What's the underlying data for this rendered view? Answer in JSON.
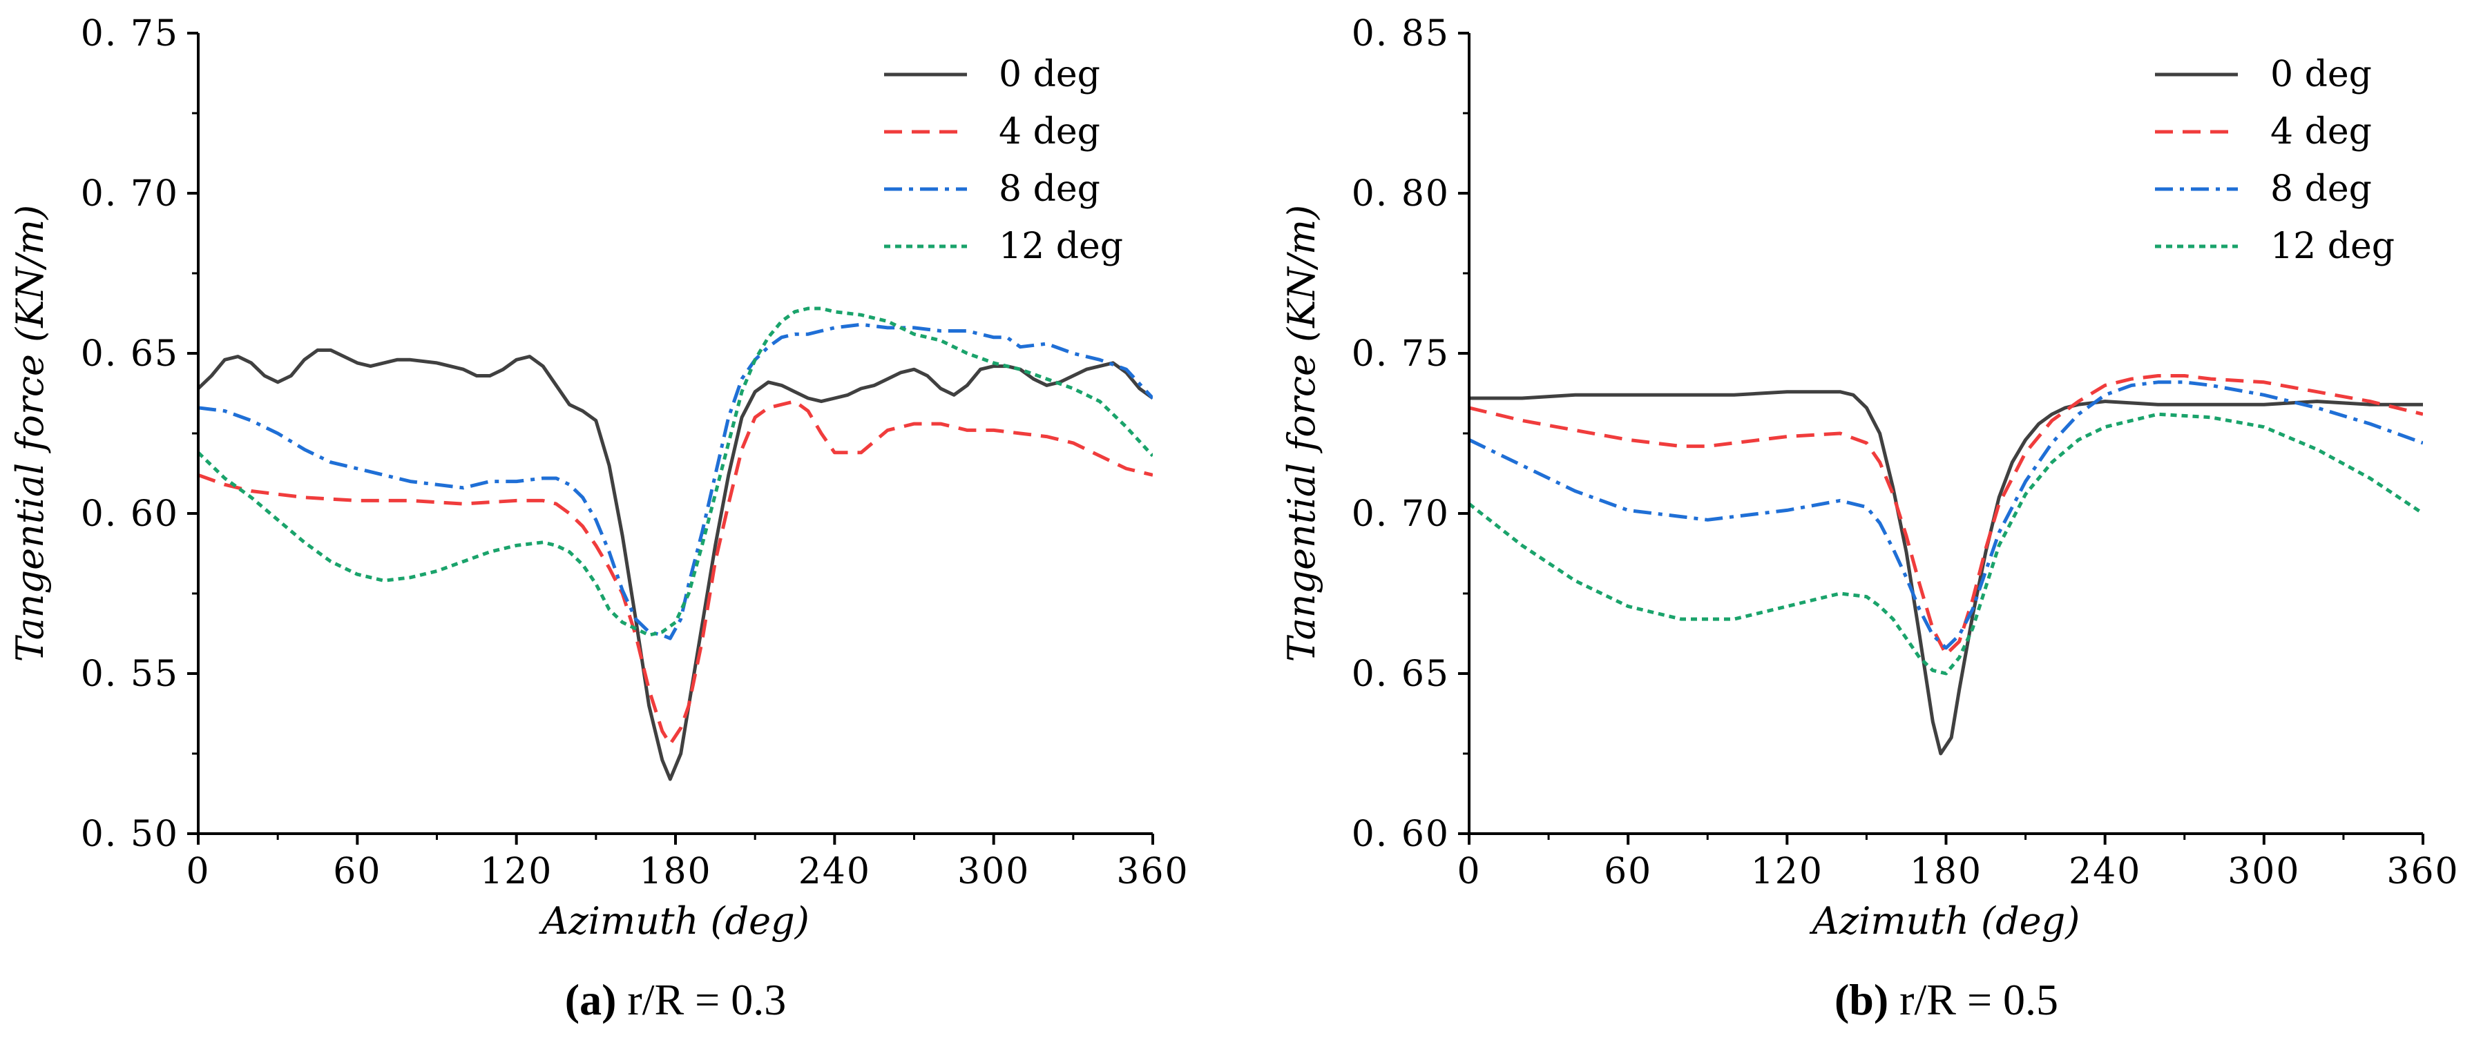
{
  "chart_data": [
    {
      "type": "line",
      "caption_prefix": "(a)",
      "caption_rest": " r/R = 0.3",
      "xlabel": "Azimuth (deg)",
      "ylabel": "Tangential force (KN/m)",
      "xlim": [
        0,
        360
      ],
      "ylim": [
        0.5,
        0.75
      ],
      "xticks": [
        0,
        60,
        120,
        180,
        240,
        300,
        360
      ],
      "yticks": [
        0.5,
        0.55,
        0.6,
        0.65,
        0.7,
        0.75
      ],
      "ytick_labels": [
        "0. 50",
        "0. 55",
        "0. 60",
        "0. 65",
        "0. 70",
        "0. 75"
      ],
      "legend_position": "top-right",
      "grid": false,
      "series": [
        {
          "name": "0 deg",
          "color": "#404040",
          "dash": "solid",
          "x": [
            0,
            5,
            10,
            15,
            20,
            25,
            30,
            35,
            40,
            45,
            50,
            55,
            60,
            65,
            70,
            75,
            80,
            90,
            100,
            105,
            110,
            115,
            120,
            125,
            130,
            135,
            140,
            145,
            150,
            155,
            160,
            165,
            170,
            175,
            178,
            182,
            185,
            190,
            195,
            200,
            205,
            210,
            215,
            220,
            225,
            230,
            235,
            240,
            245,
            250,
            255,
            260,
            265,
            270,
            275,
            280,
            285,
            290,
            295,
            300,
            305,
            310,
            315,
            320,
            325,
            330,
            335,
            340,
            345,
            350,
            355,
            360
          ],
          "y": [
            0.639,
            0.643,
            0.648,
            0.649,
            0.647,
            0.643,
            0.641,
            0.643,
            0.648,
            0.651,
            0.651,
            0.649,
            0.647,
            0.646,
            0.647,
            0.648,
            0.648,
            0.647,
            0.645,
            0.643,
            0.643,
            0.645,
            0.648,
            0.649,
            0.646,
            0.64,
            0.634,
            0.632,
            0.629,
            0.615,
            0.593,
            0.567,
            0.54,
            0.523,
            0.517,
            0.525,
            0.54,
            0.565,
            0.59,
            0.612,
            0.63,
            0.638,
            0.641,
            0.64,
            0.638,
            0.636,
            0.635,
            0.636,
            0.637,
            0.639,
            0.64,
            0.642,
            0.644,
            0.645,
            0.643,
            0.639,
            0.637,
            0.64,
            0.645,
            0.646,
            0.646,
            0.645,
            0.642,
            0.64,
            0.641,
            0.643,
            0.645,
            0.646,
            0.647,
            0.644,
            0.639,
            0.636
          ]
        },
        {
          "name": "4 deg",
          "color": "#f03c3c",
          "dash": "dashed",
          "x": [
            0,
            10,
            20,
            30,
            40,
            60,
            80,
            100,
            120,
            130,
            135,
            140,
            145,
            150,
            155,
            160,
            165,
            170,
            175,
            178,
            182,
            185,
            190,
            195,
            200,
            205,
            210,
            215,
            220,
            225,
            230,
            235,
            240,
            250,
            260,
            270,
            280,
            290,
            300,
            310,
            320,
            330,
            340,
            350,
            360
          ],
          "y": [
            0.612,
            0.609,
            0.607,
            0.606,
            0.605,
            0.604,
            0.604,
            0.603,
            0.604,
            0.604,
            0.603,
            0.6,
            0.596,
            0.59,
            0.583,
            0.575,
            0.562,
            0.545,
            0.532,
            0.528,
            0.533,
            0.54,
            0.56,
            0.585,
            0.603,
            0.62,
            0.63,
            0.633,
            0.634,
            0.635,
            0.632,
            0.625,
            0.619,
            0.619,
            0.626,
            0.628,
            0.628,
            0.626,
            0.626,
            0.625,
            0.624,
            0.622,
            0.618,
            0.614,
            0.612
          ]
        },
        {
          "name": "8 deg",
          "color": "#1f6fd6",
          "dash": "dashdot",
          "x": [
            0,
            10,
            20,
            30,
            40,
            50,
            60,
            70,
            80,
            90,
            100,
            110,
            120,
            130,
            135,
            140,
            145,
            150,
            155,
            160,
            165,
            170,
            175,
            178,
            182,
            185,
            190,
            195,
            200,
            205,
            210,
            215,
            220,
            225,
            230,
            235,
            240,
            250,
            260,
            270,
            280,
            290,
            300,
            305,
            310,
            320,
            330,
            340,
            350,
            360
          ],
          "y": [
            0.633,
            0.632,
            0.629,
            0.625,
            0.62,
            0.616,
            0.614,
            0.612,
            0.61,
            0.609,
            0.608,
            0.61,
            0.61,
            0.611,
            0.611,
            0.609,
            0.605,
            0.598,
            0.588,
            0.576,
            0.567,
            0.563,
            0.562,
            0.561,
            0.567,
            0.578,
            0.594,
            0.612,
            0.63,
            0.642,
            0.648,
            0.652,
            0.655,
            0.656,
            0.656,
            0.657,
            0.658,
            0.659,
            0.658,
            0.658,
            0.657,
            0.657,
            0.655,
            0.655,
            0.652,
            0.653,
            0.65,
            0.648,
            0.645,
            0.636
          ]
        },
        {
          "name": "12 deg",
          "color": "#1aa36b",
          "dash": "dotted",
          "x": [
            0,
            10,
            20,
            30,
            40,
            50,
            60,
            70,
            80,
            90,
            100,
            110,
            120,
            130,
            135,
            140,
            145,
            150,
            155,
            160,
            165,
            170,
            175,
            180,
            185,
            190,
            195,
            200,
            205,
            210,
            215,
            220,
            225,
            230,
            235,
            240,
            250,
            260,
            270,
            280,
            290,
            300,
            310,
            320,
            330,
            340,
            350,
            360
          ],
          "y": [
            0.619,
            0.611,
            0.605,
            0.598,
            0.591,
            0.585,
            0.581,
            0.579,
            0.58,
            0.582,
            0.585,
            0.588,
            0.59,
            0.591,
            0.59,
            0.588,
            0.584,
            0.578,
            0.57,
            0.566,
            0.564,
            0.562,
            0.563,
            0.566,
            0.575,
            0.59,
            0.606,
            0.622,
            0.638,
            0.648,
            0.655,
            0.66,
            0.663,
            0.664,
            0.664,
            0.663,
            0.662,
            0.66,
            0.656,
            0.654,
            0.65,
            0.647,
            0.645,
            0.642,
            0.639,
            0.635,
            0.627,
            0.618
          ]
        }
      ]
    },
    {
      "type": "line",
      "caption_prefix": "(b)",
      "caption_rest": " r/R = 0.5",
      "xlabel": "Azimuth (deg)",
      "ylabel": "Tangential force (KN/m)",
      "xlim": [
        0,
        360
      ],
      "ylim": [
        0.6,
        0.85
      ],
      "xticks": [
        0,
        60,
        120,
        180,
        240,
        300,
        360
      ],
      "yticks": [
        0.6,
        0.65,
        0.7,
        0.75,
        0.8,
        0.85
      ],
      "ytick_labels": [
        "0. 60",
        "0. 65",
        "0. 70",
        "0. 75",
        "0. 80",
        "0. 85"
      ],
      "legend_position": "top-right",
      "grid": false,
      "series": [
        {
          "name": "0 deg",
          "color": "#404040",
          "dash": "solid",
          "x": [
            0,
            20,
            40,
            60,
            80,
            100,
            120,
            140,
            145,
            150,
            155,
            160,
            165,
            170,
            175,
            178,
            182,
            185,
            190,
            195,
            200,
            205,
            210,
            215,
            220,
            225,
            230,
            240,
            260,
            280,
            300,
            320,
            340,
            360
          ],
          "y": [
            0.736,
            0.736,
            0.737,
            0.737,
            0.737,
            0.737,
            0.738,
            0.738,
            0.737,
            0.733,
            0.725,
            0.708,
            0.688,
            0.662,
            0.635,
            0.625,
            0.63,
            0.645,
            0.668,
            0.688,
            0.705,
            0.716,
            0.723,
            0.728,
            0.731,
            0.733,
            0.734,
            0.735,
            0.734,
            0.734,
            0.734,
            0.735,
            0.734,
            0.734
          ]
        },
        {
          "name": "4 deg",
          "color": "#f03c3c",
          "dash": "dashed",
          "x": [
            0,
            20,
            40,
            60,
            80,
            90,
            100,
            120,
            140,
            150,
            155,
            160,
            165,
            170,
            175,
            180,
            185,
            190,
            195,
            200,
            210,
            220,
            230,
            240,
            250,
            260,
            270,
            280,
            300,
            320,
            340,
            360
          ],
          "y": [
            0.733,
            0.729,
            0.726,
            0.723,
            0.721,
            0.721,
            0.722,
            0.724,
            0.725,
            0.722,
            0.716,
            0.706,
            0.693,
            0.678,
            0.664,
            0.656,
            0.66,
            0.673,
            0.689,
            0.703,
            0.719,
            0.729,
            0.735,
            0.74,
            0.742,
            0.743,
            0.743,
            0.742,
            0.741,
            0.738,
            0.735,
            0.731
          ]
        },
        {
          "name": "8 deg",
          "color": "#1f6fd6",
          "dash": "dashdot",
          "x": [
            0,
            20,
            40,
            60,
            80,
            90,
            100,
            120,
            140,
            150,
            155,
            160,
            165,
            170,
            175,
            180,
            185,
            190,
            195,
            200,
            210,
            220,
            230,
            240,
            250,
            260,
            270,
            280,
            300,
            320,
            340,
            360
          ],
          "y": [
            0.723,
            0.715,
            0.707,
            0.701,
            0.699,
            0.698,
            0.699,
            0.701,
            0.704,
            0.702,
            0.697,
            0.689,
            0.68,
            0.67,
            0.662,
            0.658,
            0.662,
            0.67,
            0.682,
            0.694,
            0.71,
            0.722,
            0.731,
            0.737,
            0.74,
            0.741,
            0.741,
            0.74,
            0.737,
            0.733,
            0.728,
            0.722
          ]
        },
        {
          "name": "12 deg",
          "color": "#1aa36b",
          "dash": "dotted",
          "x": [
            0,
            20,
            40,
            60,
            80,
            90,
            100,
            120,
            140,
            150,
            155,
            160,
            165,
            170,
            175,
            180,
            185,
            190,
            195,
            200,
            210,
            220,
            230,
            240,
            260,
            280,
            300,
            320,
            340,
            360
          ],
          "y": [
            0.703,
            0.69,
            0.679,
            0.671,
            0.667,
            0.667,
            0.667,
            0.671,
            0.675,
            0.674,
            0.671,
            0.667,
            0.661,
            0.655,
            0.651,
            0.65,
            0.655,
            0.664,
            0.677,
            0.69,
            0.706,
            0.716,
            0.723,
            0.727,
            0.731,
            0.73,
            0.727,
            0.72,
            0.711,
            0.7
          ]
        }
      ]
    }
  ]
}
